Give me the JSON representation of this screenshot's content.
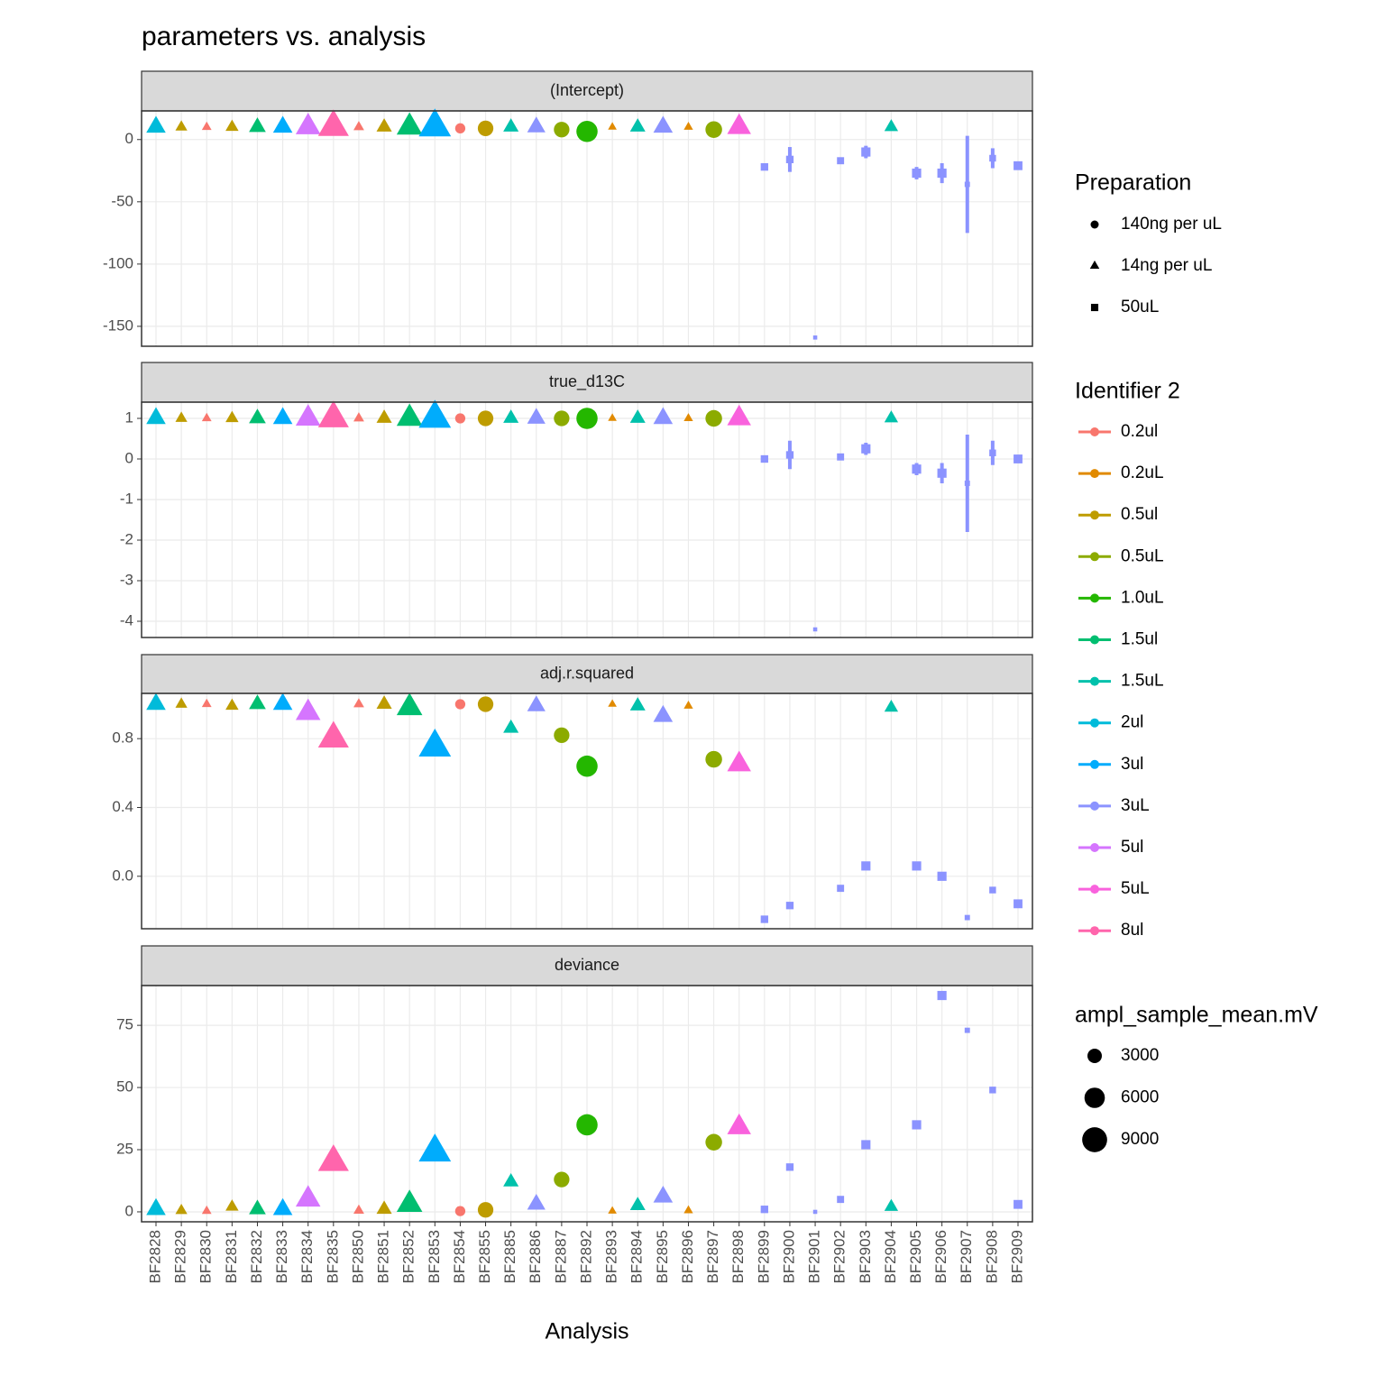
{
  "chart_data": {
    "type": "scatter",
    "title": "parameters vs. analysis",
    "x_label": "Analysis",
    "categories": [
      "BF2828",
      "BF2829",
      "BF2830",
      "BF2831",
      "BF2832",
      "BF2833",
      "BF2834",
      "BF2835",
      "BF2850",
      "BF2851",
      "BF2852",
      "BF2853",
      "BF2854",
      "BF2855",
      "BF2885",
      "BF2886",
      "BF2887",
      "BF2892",
      "BF2893",
      "BF2894",
      "BF2895",
      "BF2896",
      "BF2897",
      "BF2898",
      "BF2899",
      "BF2900",
      "BF2901",
      "BF2902",
      "BF2903",
      "BF2904",
      "BF2905",
      "BF2906",
      "BF2907",
      "BF2908",
      "BF2909"
    ],
    "preparation": [
      "14ng per uL",
      "14ng per uL",
      "14ng per uL",
      "14ng per uL",
      "14ng per uL",
      "14ng per uL",
      "14ng per uL",
      "14ng per uL",
      "14ng per uL",
      "14ng per uL",
      "14ng per uL",
      "14ng per uL",
      "140ng per uL",
      "140ng per uL",
      "14ng per uL",
      "14ng per uL",
      "140ng per uL",
      "140ng per uL",
      "14ng per uL",
      "14ng per uL",
      "14ng per uL",
      "14ng per uL",
      "140ng per uL",
      "14ng per uL",
      "50uL",
      "50uL",
      "50uL",
      "50uL",
      "50uL",
      "14ng per uL",
      "50uL",
      "50uL",
      "50uL",
      "50uL",
      "50uL"
    ],
    "identifier": [
      "2ul",
      "0.5ul",
      "0.2ul",
      "0.5ul",
      "1.5ul",
      "3ul",
      "5ul",
      "8ul",
      "0.2ul",
      "0.5ul",
      "1.5ul",
      "3ul",
      "0.2ul",
      "0.5ul",
      "1.5uL",
      "3uL",
      "0.5uL",
      "1.0uL",
      "0.2uL",
      "1.5uL",
      "3uL",
      "0.2uL",
      "0.5uL",
      "5uL",
      "3uL",
      "3uL",
      "3uL",
      "3uL",
      "3uL",
      "1.5uL",
      "3uL",
      "3uL",
      "3uL",
      "3uL",
      "3uL"
    ],
    "amplitude": [
      4000,
      1500,
      1000,
      1800,
      3000,
      4000,
      6500,
      10000,
      1200,
      2500,
      7000,
      11000,
      1500,
      3500,
      2500,
      3500,
      3500,
      6500,
      800,
      2500,
      4000,
      900,
      4000,
      6000,
      1000,
      1000,
      300,
      900,
      1500,
      2000,
      1500,
      1500,
      500,
      800,
      1400
    ],
    "facets": [
      {
        "name": "(Intercept)",
        "ylim": [
          -166,
          23
        ],
        "yticks": [
          0,
          -50,
          -100,
          -150
        ],
        "values": [
          10,
          10,
          10,
          10,
          10,
          10,
          10,
          10,
          10,
          10,
          10,
          10,
          9,
          9,
          10,
          10,
          8,
          6.5,
          10,
          10,
          10,
          10,
          8,
          10,
          -22,
          -16,
          -159,
          -17,
          -10,
          10,
          -27,
          -27,
          -36,
          -15,
          -21
        ],
        "errors": [
          null,
          null,
          null,
          null,
          null,
          null,
          null,
          null,
          null,
          null,
          null,
          null,
          null,
          null,
          null,
          null,
          null,
          null,
          null,
          null,
          null,
          null,
          null,
          null,
          null,
          10,
          null,
          null,
          5,
          null,
          5,
          8,
          39,
          8,
          null
        ]
      },
      {
        "name": "true_d13C",
        "ylim": [
          -4.4,
          1.4
        ],
        "yticks": [
          1,
          0,
          -1,
          -2,
          -3,
          -4
        ],
        "values": [
          1,
          1,
          1,
          1,
          1,
          1,
          1,
          1,
          1,
          1,
          1,
          1,
          1,
          1,
          1,
          1,
          1,
          1,
          1,
          1,
          1,
          1,
          1,
          1,
          0,
          0.1,
          -4.2,
          0.05,
          0.25,
          1,
          -0.25,
          -0.35,
          -0.6,
          0.15,
          0
        ],
        "errors": [
          null,
          null,
          null,
          null,
          null,
          null,
          null,
          null,
          null,
          null,
          null,
          null,
          null,
          null,
          null,
          null,
          null,
          null,
          null,
          null,
          null,
          null,
          null,
          null,
          null,
          0.35,
          null,
          null,
          0.15,
          null,
          0.15,
          0.25,
          1.2,
          0.3,
          null
        ]
      },
      {
        "name": "adj.r.squared",
        "ylim": [
          -0.305,
          1.063
        ],
        "yticks": [
          {
            "value": 0,
            "label": "0.0"
          },
          0.4,
          0.8
        ],
        "values": [
          1,
          1,
          1,
          0.99,
          1,
          1,
          0.95,
          0.8,
          1,
          1,
          0.98,
          0.75,
          1,
          1,
          0.86,
          0.99,
          0.82,
          0.64,
          1,
          0.99,
          0.93,
          0.99,
          0.68,
          0.65,
          -0.25,
          -0.17,
          null,
          -0.07,
          0.06,
          0.98,
          0.06,
          0,
          -0.24,
          -0.08,
          -0.16
        ]
      },
      {
        "name": "deviance",
        "ylim": [
          -4,
          91
        ],
        "yticks": [
          0,
          25,
          50,
          75
        ],
        "values": [
          1,
          0.5,
          0.3,
          2,
          1,
          1,
          5,
          20,
          0.5,
          1,
          3,
          24,
          0.3,
          0.8,
          12,
          3,
          13,
          35,
          0.3,
          2.5,
          6,
          0.5,
          28,
          34,
          1,
          18,
          0,
          5,
          27,
          2,
          35,
          87,
          73,
          49,
          3
        ]
      }
    ],
    "preparation_legend": {
      "title": "Preparation",
      "names": [
        "140ng per uL",
        "14ng per uL",
        "50uL"
      ]
    },
    "identifier_legend": {
      "title": "Identifier 2",
      "series": [
        {
          "name": "0.2ul",
          "color": "#F8766D"
        },
        {
          "name": "0.2uL",
          "color": "#E18A00"
        },
        {
          "name": "0.5ul",
          "color": "#BE9C00"
        },
        {
          "name": "0.5uL",
          "color": "#8CAB00"
        },
        {
          "name": "1.0uL",
          "color": "#24B700"
        },
        {
          "name": "1.5ul",
          "color": "#00BE70"
        },
        {
          "name": "1.5uL",
          "color": "#00C1AB"
        },
        {
          "name": "2ul",
          "color": "#00BBDA"
        },
        {
          "name": "3ul",
          "color": "#00ACFC"
        },
        {
          "name": "3uL",
          "color": "#8B93FF"
        },
        {
          "name": "5ul",
          "color": "#D575FE"
        },
        {
          "name": "5uL",
          "color": "#F962DD"
        },
        {
          "name": "8ul",
          "color": "#FF65AC"
        }
      ]
    },
    "size_legend": {
      "title": "ampl_sample_mean.mV",
      "values": [
        3000,
        6000,
        9000
      ]
    }
  }
}
